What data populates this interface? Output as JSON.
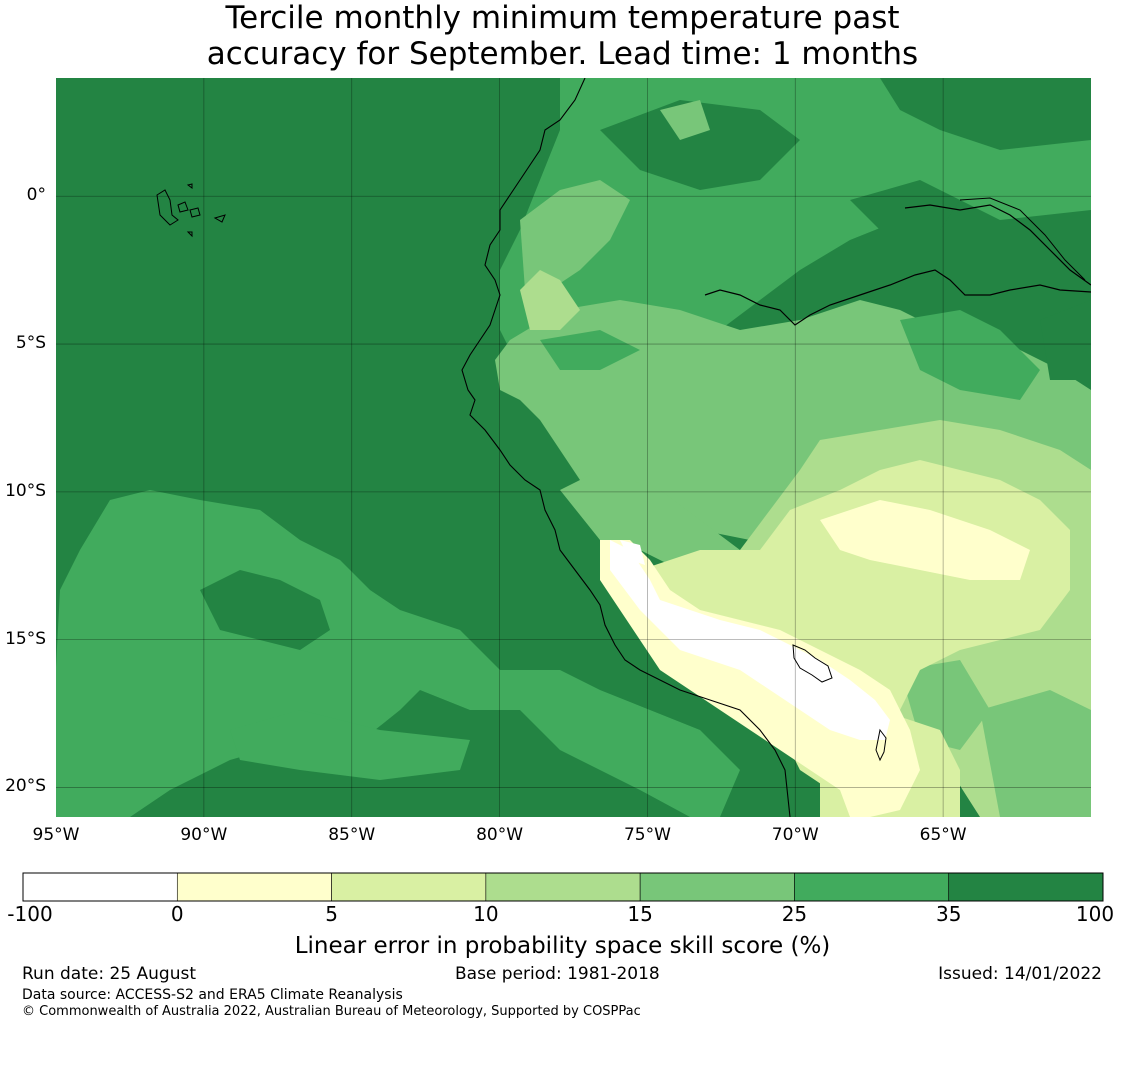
{
  "title": {
    "line1": "Tercile monthly minimum temperature past",
    "line2": "accuracy for September. Lead time: 1 months"
  },
  "map": {
    "lon_range": [
      -95,
      -60
    ],
    "lat_range": [
      -21,
      4
    ],
    "lat_labels": [
      "0°",
      "5°S",
      "10°S",
      "15°S",
      "20°S"
    ],
    "lat_values": [
      0,
      -5,
      -10,
      -15,
      -20
    ],
    "lon_labels": [
      "95°W",
      "90°W",
      "85°W",
      "80°W",
      "75°W",
      "70°W",
      "65°W"
    ],
    "lon_values": [
      -95,
      -90,
      -85,
      -80,
      -75,
      -70,
      -65
    ],
    "gridlines": true,
    "region": "Western South America (Ecuador, Peru) and adjacent Pacific Ocean"
  },
  "colorbar": {
    "ticks": [
      "-100",
      "0",
      "5",
      "10",
      "15",
      "25",
      "35",
      "100"
    ],
    "colors": [
      "#ffffff",
      "#ffffcc",
      "#d9f0a3",
      "#addd8e",
      "#78c679",
      "#41ab5d",
      "#238443"
    ],
    "label": "Linear error in probability space skill score (%)"
  },
  "footer": {
    "run_date": "Run date: 25 August",
    "base_period": "Base period: 1981-2018",
    "issued": "Issued: 14/01/2022",
    "data_source": "Data source: ACCESS-S2 and ERA5 Climate Reanalysis",
    "copyright": "© Commonwealth of Australia 2022, Australian Bureau of Meteorology, Supported by COSPPac"
  }
}
